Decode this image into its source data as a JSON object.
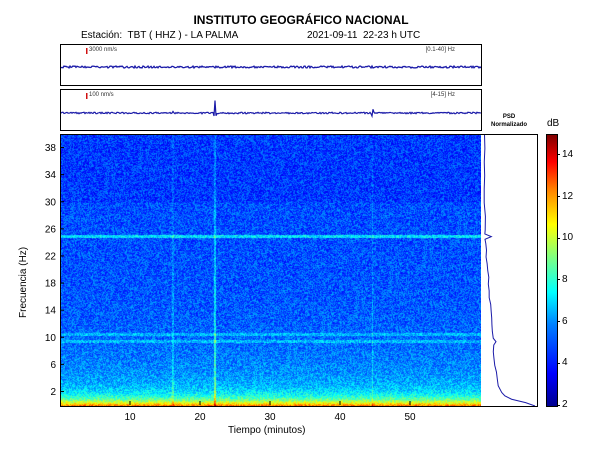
{
  "header": {
    "title": "INSTITUTO GEOGRÁFICO NACIONAL",
    "station": "Estación:  TBT ( HHZ ) - LA PALMA",
    "datetime": "2021-09-11  22-23 h UTC"
  },
  "traces": [
    {
      "scale": "3000 nm/s",
      "band": "[0.1-40] Hz"
    },
    {
      "scale": "100 nm/s",
      "band": "[4-15] Hz"
    }
  ],
  "psd": {
    "title_line1": "PSD",
    "title_line2": "Normalizado"
  },
  "chart_data": {
    "type": "heatmap",
    "title": "",
    "xlabel": "Tiempo (minutos)",
    "ylabel": "Frecuencia (Hz)",
    "xlim": [
      0,
      60
    ],
    "ylim": [
      0,
      40
    ],
    "x_ticks": [
      10,
      20,
      30,
      40,
      50
    ],
    "y_ticks": [
      2,
      6,
      10,
      14,
      18,
      22,
      26,
      30,
      34,
      38
    ],
    "colorbar": {
      "label": "dB",
      "range": [
        2,
        15
      ],
      "ticks": [
        2,
        4,
        6,
        8,
        10,
        12,
        14
      ]
    },
    "events_minutes": [
      16,
      22,
      44.5
    ],
    "spectral_lines_hz": [
      9.5,
      10.5,
      25
    ],
    "psd_profile": {
      "freq_hz": [
        0,
        0.5,
        1,
        1.5,
        2,
        3,
        4,
        5,
        6,
        7,
        8,
        9,
        9.5,
        10,
        11,
        12,
        13,
        14,
        15,
        16,
        17,
        18,
        19,
        20,
        21,
        22,
        23,
        24,
        24.6,
        25,
        25.4,
        26,
        28,
        30,
        32,
        34,
        36,
        38,
        40
      ],
      "level": [
        1.0,
        0.82,
        0.55,
        0.42,
        0.36,
        0.3,
        0.27,
        0.25,
        0.23,
        0.22,
        0.21,
        0.2,
        0.26,
        0.2,
        0.18,
        0.17,
        0.16,
        0.15,
        0.14,
        0.13,
        0.12,
        0.11,
        0.1,
        0.09,
        0.08,
        0.07,
        0.06,
        0.055,
        0.05,
        0.17,
        0.05,
        0.045,
        0.04,
        0.035,
        0.03,
        0.03,
        0.025,
        0.025,
        0.02
      ]
    }
  }
}
